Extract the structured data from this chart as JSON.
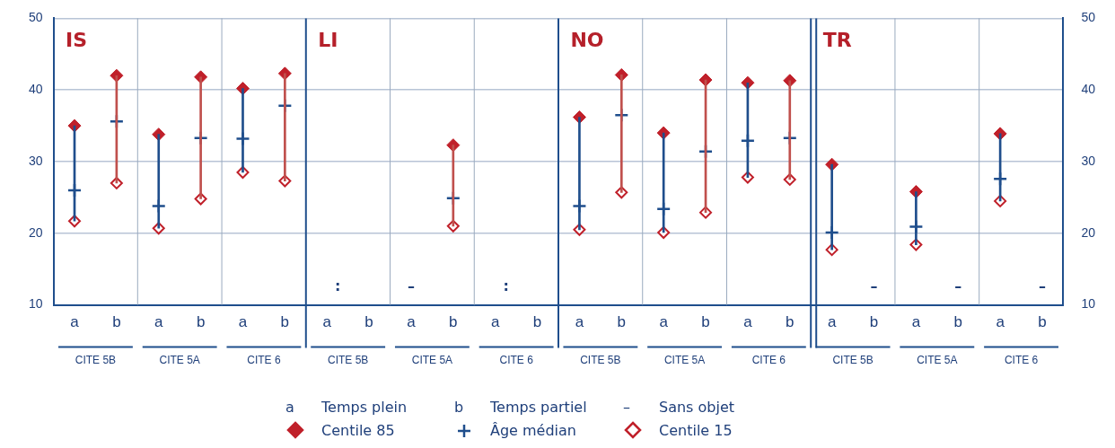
{
  "chart_data": {
    "type": "scatter",
    "categories": [
      "a",
      "b",
      "a",
      "b",
      "a",
      "b",
      "a",
      "b",
      "a",
      "b",
      "a",
      "b",
      "a",
      "b",
      "a",
      "b",
      "a",
      "b",
      "a",
      "b",
      "a",
      "b",
      "a",
      "b"
    ],
    "series": [
      {
        "type": "bar",
        "base": [
          21.7,
          27,
          20.7,
          24.8,
          28.5,
          27.3,
          null,
          null,
          null,
          21,
          null,
          null,
          20.5,
          25.7,
          20.1,
          22.9,
          27.8,
          27.5,
          17.7,
          null,
          18.4,
          null,
          24.5,
          null
        ],
        "colors": [
          "#1f4e8c",
          "#c0504d",
          "#1f4e8c",
          "#c0504d",
          "#1f4e8c",
          "#c0504d",
          "#1f4e8c",
          "#c0504d",
          "#1f4e8c",
          "#c0504d",
          "#1f4e8c",
          "#c0504d",
          "#1f4e8c",
          "#c0504d",
          "#1f4e8c",
          "#c0504d",
          "#1f4e8c",
          "#c0504d",
          "#1f4e8c",
          "#c0504d",
          "#1f4e8c",
          "#c0504d",
          "#1f4e8c",
          "#c0504d"
        ],
        "values": [
          13.3,
          15,
          13.1,
          17,
          11.7,
          15,
          null,
          null,
          null,
          11.3,
          null,
          null,
          15.7,
          16.4,
          13.9,
          18.5,
          13.2,
          13.8,
          11.9,
          null,
          7.4,
          null,
          9.4,
          null
        ]
      },
      {
        "name": "Centile 85",
        "color": "#c0202a",
        "marker": "diamond",
        "values": [
          35,
          42,
          33.8,
          41.8,
          40.2,
          42.3,
          null,
          null,
          null,
          32.3,
          null,
          null,
          36.2,
          42.1,
          34,
          41.4,
          41,
          41.3,
          29.6,
          null,
          25.8,
          null,
          33.9,
          null
        ]
      },
      {
        "name": "Âge médian",
        "color": "#1f4e8c",
        "marker": "cross",
        "values": [
          26,
          35.6,
          23.8,
          33.3,
          33.2,
          37.8,
          null,
          null,
          null,
          24.9,
          null,
          null,
          23.8,
          36.5,
          23.4,
          31.4,
          32.9,
          33.3,
          20.1,
          null,
          20.9,
          null,
          27.6,
          null
        ],
        "value_labels": [
          null,
          null,
          null,
          null,
          null,
          null,
          ":",
          null,
          "–",
          null,
          ":",
          null,
          null,
          null,
          null,
          null,
          null,
          null,
          null,
          "–",
          null,
          "–",
          null,
          "–"
        ]
      },
      {
        "name": "Centile 15",
        "color": "#c0202a",
        "marker": "diamond-open",
        "values": [
          21.7,
          27,
          20.7,
          24.8,
          28.5,
          27.3,
          null,
          null,
          null,
          21,
          null,
          null,
          20.5,
          25.7,
          20.1,
          22.9,
          27.8,
          27.5,
          17.7,
          null,
          18.4,
          null,
          24.5,
          null
        ]
      }
    ],
    "ylim": [
      10,
      50
    ],
    "yticks": [
      10,
      20,
      30,
      40,
      50
    ],
    "y2lim": [
      10,
      50
    ],
    "y2ticks": [
      10,
      20,
      30,
      40,
      50
    ],
    "grid": "y",
    "legend": "bottom",
    "annotations": [
      "IS",
      "LI",
      "NO",
      "TR",
      "CITE 5B",
      "CITE 5A",
      "CITE 6",
      "CITE 5B",
      "CITE 5A",
      "CITE 6",
      "CITE 5B",
      "CITE 5A",
      "CITE 6",
      "CITE 5B",
      "CITE 5A",
      "CITE 6",
      "a",
      "Temps plein",
      "b",
      "Temps partiel",
      "–",
      "Sans objet"
    ]
  }
}
